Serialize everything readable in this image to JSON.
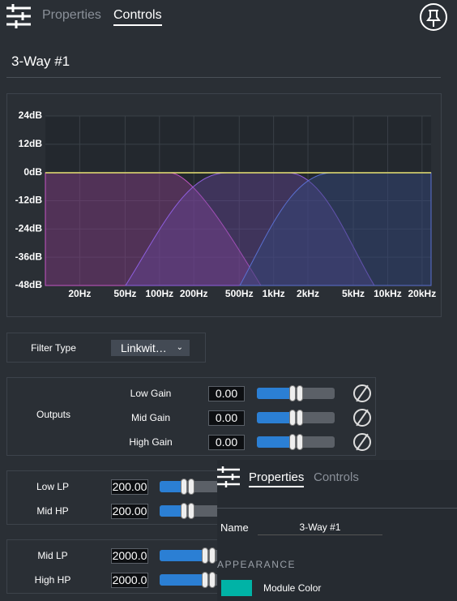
{
  "header": {
    "tabs": [
      "Properties",
      "Controls"
    ]
  },
  "title": "3-Way #1",
  "chart": {
    "ylim": [
      -48,
      24
    ],
    "xlim": [
      10,
      24000
    ],
    "log_x": true,
    "grid": true,
    "yticks": [
      {
        "value": 24,
        "label": "24dB"
      },
      {
        "value": 12,
        "label": "12dB"
      },
      {
        "value": 0,
        "label": "0dB"
      },
      {
        "value": -12,
        "label": "-12dB"
      },
      {
        "value": -24,
        "label": "-24dB"
      },
      {
        "value": -36,
        "label": "-36dB"
      },
      {
        "value": -48,
        "label": "-48dB"
      }
    ],
    "xticks": [
      {
        "value": 20,
        "label": "20Hz"
      },
      {
        "value": 50,
        "label": "50Hz"
      },
      {
        "value": 100,
        "label": "100Hz"
      },
      {
        "value": 200,
        "label": "200Hz"
      },
      {
        "value": 500,
        "label": "500Hz"
      },
      {
        "value": 1000,
        "label": "1kHz"
      },
      {
        "value": 2000,
        "label": "2kHz"
      },
      {
        "value": 5000,
        "label": "5kHz"
      },
      {
        "value": 10000,
        "label": "10kHz"
      },
      {
        "value": 20000,
        "label": "20kHz"
      }
    ]
  },
  "filter": {
    "label": "Filter Type",
    "value": "Linkwit…"
  },
  "outputs": {
    "label": "Outputs",
    "rows": [
      {
        "label": "Low Gain",
        "value": "0.00"
      },
      {
        "label": "Mid Gain",
        "value": "0.00"
      },
      {
        "label": "High Gain",
        "value": "0.00"
      }
    ]
  },
  "crossover1": [
    {
      "label": "Low LP",
      "value": "200.00"
    },
    {
      "label": "Mid HP",
      "value": "200.00"
    }
  ],
  "crossover2": [
    {
      "label": "Mid LP",
      "value": "2000.0"
    },
    {
      "label": "High HP",
      "value": "2000.0"
    }
  ],
  "overlay": {
    "tabs": [
      "Properties",
      "Controls"
    ],
    "name_label": "Name",
    "name_value": "3-Way #1",
    "section": "APPEARANCE",
    "color_label": "Module Color"
  }
}
